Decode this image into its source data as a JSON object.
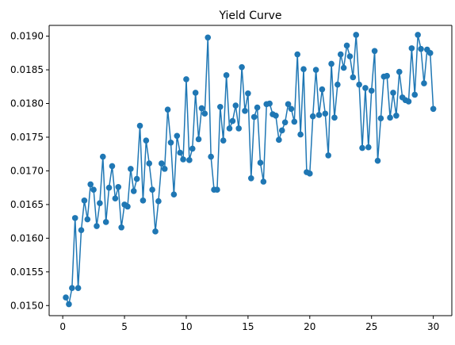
{
  "chart_data": {
    "type": "line",
    "title": "Yield Curve",
    "xlabel": "",
    "ylabel": "",
    "xlim": [
      -1.1,
      31.5
    ],
    "ylim": [
      0.01485,
      0.01916
    ],
    "x_ticks": [
      0,
      5,
      10,
      15,
      20,
      25,
      30
    ],
    "x_tick_labels": [
      "0",
      "5",
      "10",
      "15",
      "20",
      "25",
      "30"
    ],
    "y_ticks": [
      0.015,
      0.0155,
      0.016,
      0.0165,
      0.017,
      0.0175,
      0.018,
      0.0185,
      0.019
    ],
    "y_tick_labels": [
      "0.0150",
      "0.0155",
      "0.0160",
      "0.0165",
      "0.0170",
      "0.0175",
      "0.0180",
      "0.0185",
      "0.0190"
    ],
    "grid": false,
    "legend": "none",
    "markers": true,
    "color": "#1f77b4",
    "series": [
      {
        "x": [
          0.25,
          0.5,
          0.75,
          1.0,
          1.25,
          1.5,
          1.75,
          2.0,
          2.25,
          2.5,
          2.75,
          3.0,
          3.25,
          3.5,
          3.75,
          4.0,
          4.25,
          4.5,
          4.75,
          5.0,
          5.25,
          5.5,
          5.75,
          6.0,
          6.25,
          6.5,
          6.75,
          7.0,
          7.25,
          7.5,
          7.75,
          8.0,
          8.25,
          8.5,
          8.75,
          9.0,
          9.25,
          9.5,
          9.75,
          10.0,
          10.25,
          10.5,
          10.75,
          11.0,
          11.25,
          11.5,
          11.75,
          12.0,
          12.25,
          12.5,
          12.75,
          13.0,
          13.25,
          13.5,
          13.75,
          14.0,
          14.25,
          14.5,
          14.75,
          15.0,
          15.25,
          15.5,
          15.75,
          16.0,
          16.25,
          16.5,
          16.75,
          17.0,
          17.25,
          17.5,
          17.75,
          18.0,
          18.25,
          18.5,
          18.75,
          19.0,
          19.25,
          19.5,
          19.75,
          20.0,
          20.25,
          20.5,
          20.75,
          21.0,
          21.25,
          21.5,
          21.75,
          22.0,
          22.25,
          22.5,
          22.75,
          23.0,
          23.25,
          23.5,
          23.75,
          24.0,
          24.25,
          24.5,
          24.75,
          25.0,
          25.25,
          25.5,
          25.75,
          26.0,
          26.25,
          26.5,
          26.75,
          27.0,
          27.25,
          27.5,
          27.75,
          28.0,
          28.25,
          28.5,
          28.75,
          29.0,
          29.25,
          29.5,
          29.75,
          30.0
        ],
        "values": [
          0.01512,
          0.01502,
          0.01526,
          0.0163,
          0.01526,
          0.01612,
          0.01656,
          0.01628,
          0.0168,
          0.01672,
          0.01618,
          0.01652,
          0.01721,
          0.01624,
          0.01675,
          0.01707,
          0.01659,
          0.01676,
          0.01616,
          0.0165,
          0.01647,
          0.01703,
          0.0167,
          0.01688,
          0.01767,
          0.01656,
          0.01745,
          0.01711,
          0.01672,
          0.0161,
          0.01655,
          0.01711,
          0.01703,
          0.01791,
          0.01742,
          0.01665,
          0.01752,
          0.01727,
          0.01717,
          0.01836,
          0.01716,
          0.01733,
          0.01816,
          0.01747,
          0.01793,
          0.01785,
          0.01898,
          0.01721,
          0.01672,
          0.01672,
          0.01795,
          0.01745,
          0.01842,
          0.01763,
          0.01774,
          0.01797,
          0.01763,
          0.01854,
          0.01789,
          0.01815,
          0.01689,
          0.0178,
          0.01794,
          0.01712,
          0.01684,
          0.01799,
          0.018,
          0.01784,
          0.01782,
          0.01746,
          0.0176,
          0.01772,
          0.01799,
          0.01792,
          0.01773,
          0.01873,
          0.01754,
          0.01851,
          0.01698,
          0.01696,
          0.01781,
          0.0185,
          0.01783,
          0.01821,
          0.01785,
          0.01723,
          0.01859,
          0.01779,
          0.01828,
          0.01873,
          0.01853,
          0.01886,
          0.0187,
          0.01839,
          0.01902,
          0.01828,
          0.01734,
          0.01823,
          0.01735,
          0.01819,
          0.01878,
          0.01715,
          0.01778,
          0.0184,
          0.01841,
          0.01779,
          0.01816,
          0.01782,
          0.01847,
          0.01809,
          0.01805,
          0.01803,
          0.01882,
          0.01813,
          0.01902,
          0.01881,
          0.0183,
          0.0188,
          0.01875,
          0.01792
        ]
      }
    ]
  }
}
